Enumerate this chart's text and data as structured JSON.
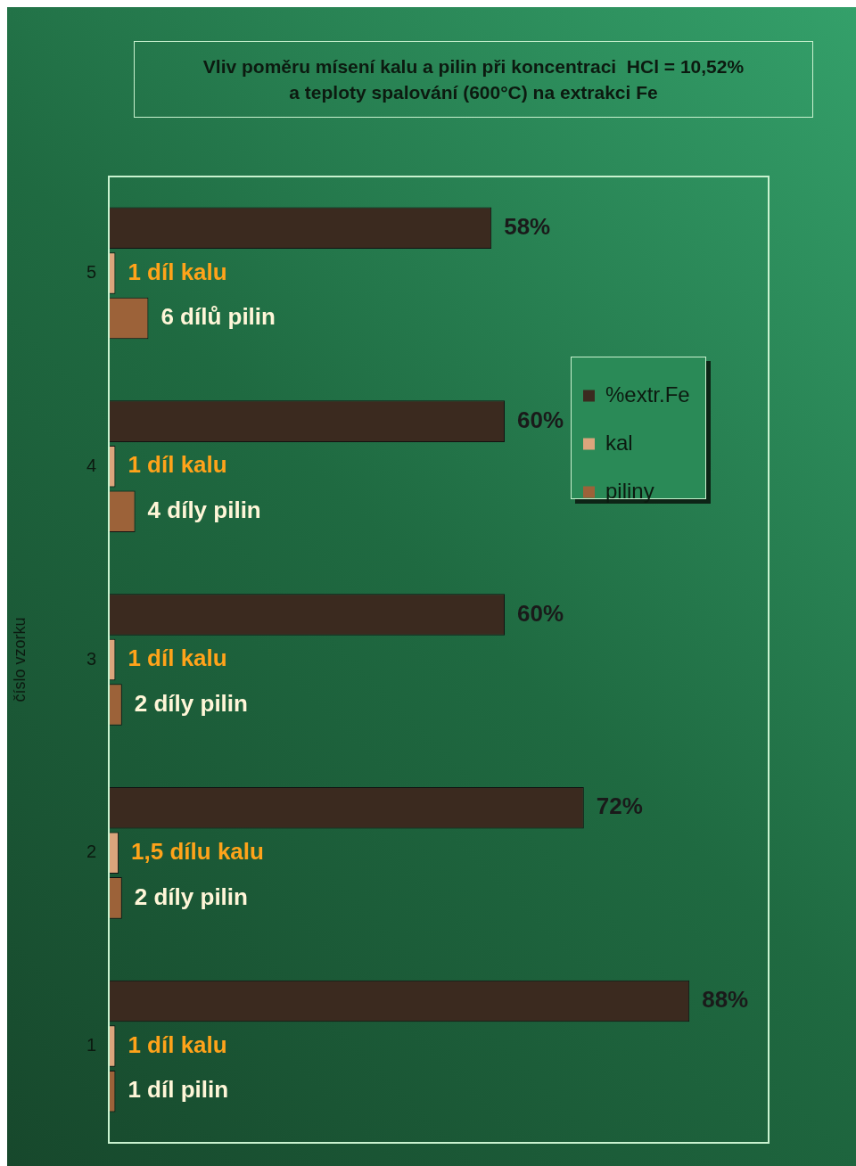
{
  "chart_data": {
    "type": "bar",
    "orientation": "horizontal",
    "title": "Vliv poměru mísení kalu a pilin při koncentraci  HCl = 10,52%\na teploty spalování (600°C) na extrakci Fe",
    "ylabel": "číslo vzorku",
    "categories": [
      "5",
      "4",
      "3",
      "2",
      "1"
    ],
    "xlim": [
      0,
      100
    ],
    "tick_labels": "y",
    "grid": false,
    "legend": "top right",
    "series": [
      {
        "name": "%extr.Fe",
        "color": "#3b2a1f",
        "values": [
          58,
          60,
          60,
          72,
          88
        ],
        "value_labels": [
          "58%",
          "60%",
          "60%",
          "72%",
          "88%"
        ]
      },
      {
        "name": "kal",
        "color": "#dba57c",
        "values": [
          1,
          1,
          1,
          1.5,
          1
        ],
        "value_labels": [
          "1 díl kalu",
          "1 díl kalu",
          "1 díl kalu",
          "1,5 dílu kalu",
          "1 díl kalu"
        ]
      },
      {
        "name": "piliny",
        "color": "#9c6239",
        "values": [
          6,
          4,
          2,
          2,
          1
        ],
        "value_labels": [
          "6 dílů pilin",
          "4 díly pilin",
          "2 díly pilin",
          "2 díly pilin",
          "1 díl pilin"
        ]
      }
    ]
  }
}
